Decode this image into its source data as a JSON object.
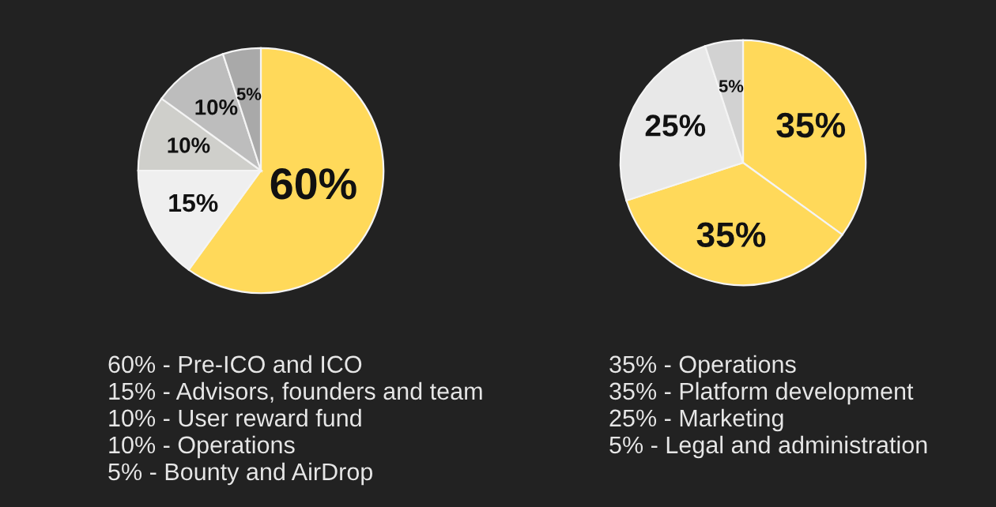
{
  "chart_data": [
    {
      "type": "pie",
      "categories": [
        null,
        null,
        null,
        null,
        null
      ],
      "values": [
        60,
        15,
        10,
        10,
        5
      ],
      "value_labels": [
        "60%",
        "15%",
        "10%",
        "10%",
        "5%"
      ],
      "colors": [
        "#ffd95a",
        "#efefef",
        "#cfcfcb",
        "#bdbdbd",
        "#a9a9a9"
      ],
      "annotations": [
        "60% - Pre-ICO and ICO",
        "15% - Advisors, founders and team",
        "10% - User reward fund",
        "10% - Operations",
        "5% - Bounty and AirDrop"
      ]
    },
    {
      "type": "pie",
      "categories": [
        null,
        null,
        null,
        null
      ],
      "values": [
        35,
        35,
        25,
        5
      ],
      "value_labels": [
        "35%",
        "35%",
        "25%",
        "5%"
      ],
      "colors": [
        "#ffd95a",
        "#ffd95a",
        "#e8e8e8",
        "#d2d2d2"
      ],
      "annotations": [
        "35% - Operations",
        "35% - Platform development",
        "25% - Marketing",
        "5% - Legal and administration"
      ]
    }
  ]
}
